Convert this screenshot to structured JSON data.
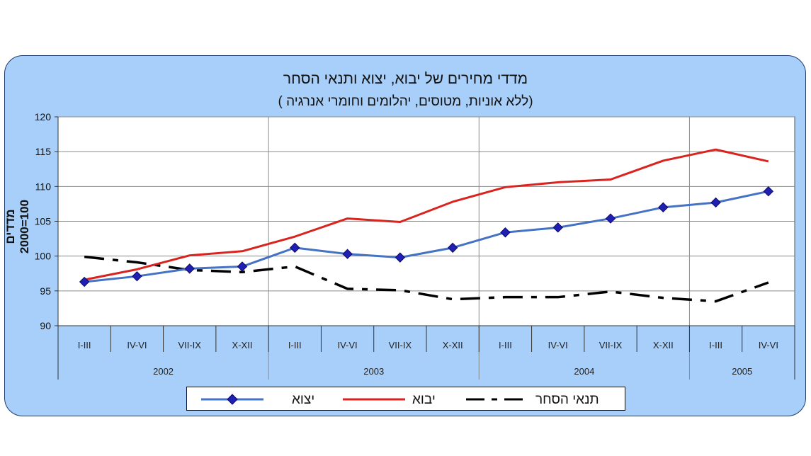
{
  "chart_data": {
    "type": "line",
    "title": "מדדי מחירים של יבוא,  יצוא ותנאי הסחר",
    "subtitle": "( ללא אוניות,  מטוסים,   יהלומים וחומרי אנרגיה)",
    "ylabel": "2000=100  מדדים",
    "ylabel_line1": "מדדים",
    "ylabel_line2": "2000=100",
    "ylim": [
      90,
      120
    ],
    "yticks": [
      "90",
      "95",
      "100",
      "105",
      "110",
      "115",
      "120"
    ],
    "categories": [
      "I-III",
      "IV-VI",
      "VII-IX",
      "X-XII",
      "I-III",
      "IV-VI",
      "VII-IX",
      "X-XII",
      "I-III",
      "IV-VI",
      "VII-IX",
      "X-XII",
      "I-III",
      "IV-VI"
    ],
    "years": [
      {
        "label": "2002",
        "span": 4
      },
      {
        "label": "2003",
        "span": 4
      },
      {
        "label": "2004",
        "span": 4
      },
      {
        "label": "2005",
        "span": 2
      }
    ],
    "grid": true,
    "legend_position": "bottom",
    "series": [
      {
        "name": "יצוא",
        "color": "#4472c4",
        "style": "solid-diamond",
        "values": [
          96.3,
          97.1,
          98.2,
          98.5,
          101.2,
          100.3,
          99.8,
          101.2,
          103.4,
          104.1,
          105.4,
          107.0,
          107.7,
          109.3
        ]
      },
      {
        "name": "יבוא",
        "color": "#d9231e",
        "style": "solid",
        "values": [
          96.6,
          98.1,
          100.1,
          100.7,
          102.8,
          105.4,
          104.9,
          107.8,
          109.9,
          110.6,
          111.0,
          113.7,
          115.3,
          113.6
        ]
      },
      {
        "name": "תנאי הסחר",
        "color": "#000000",
        "style": "dashed",
        "values": [
          99.9,
          99.1,
          98.0,
          97.7,
          98.5,
          95.3,
          95.1,
          93.8,
          94.1,
          94.1,
          94.9,
          94.0,
          93.5,
          96.2
        ]
      }
    ]
  }
}
